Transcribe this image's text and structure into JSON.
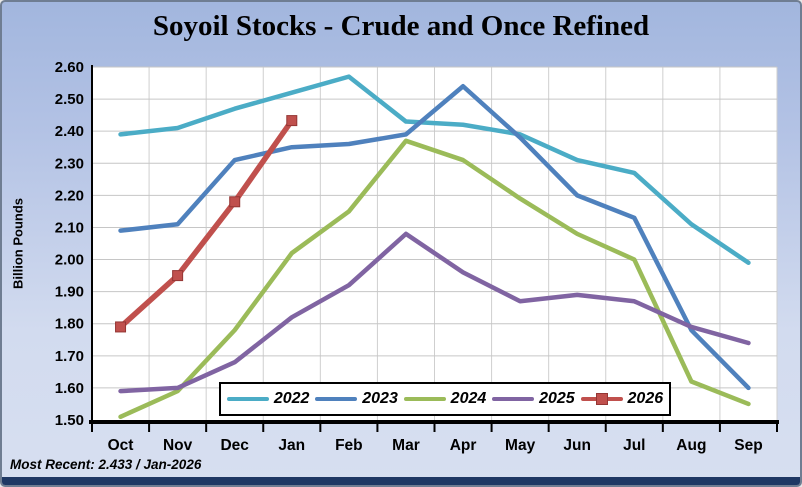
{
  "footer": {
    "text": "Most Recent: 2.433 / Jan-2026"
  },
  "colors": {
    "background_top": "#a2b6de",
    "background_bottom": "#d7dff0",
    "bottom_bar": "#1f3864",
    "plot_background": "#ffffff",
    "gridline": "#c6c6c6",
    "axis": "#000000",
    "legend_border": "#000000",
    "legend_background": "#ffffff"
  },
  "chart_data": {
    "type": "line",
    "title": "Soyoil Stocks - Crude and Once Refined",
    "xlabel": "",
    "ylabel": "Billion Pounds",
    "categories": [
      "Oct",
      "Nov",
      "Dec",
      "Jan",
      "Feb",
      "Mar",
      "Apr",
      "May",
      "Jun",
      "Jul",
      "Aug",
      "Sep"
    ],
    "ylim": [
      1.5,
      2.6
    ],
    "y_tick_step": 0.1,
    "y_ticks": [
      "2.60",
      "2.50",
      "2.40",
      "2.30",
      "2.20",
      "2.10",
      "2.00",
      "1.90",
      "1.80",
      "1.70",
      "1.60",
      "1.50"
    ],
    "grid": true,
    "legend_position": "bottom-inside",
    "series": [
      {
        "name": "2022",
        "color": "#4BACC6",
        "marker": "none",
        "values": [
          2.39,
          2.41,
          2.47,
          2.52,
          2.57,
          2.43,
          2.42,
          2.39,
          2.31,
          2.27,
          2.11,
          1.99
        ]
      },
      {
        "name": "2023",
        "color": "#4F81BD",
        "marker": "none",
        "values": [
          2.09,
          2.11,
          2.31,
          2.35,
          2.36,
          2.39,
          2.54,
          2.38,
          2.2,
          2.13,
          1.78,
          1.6
        ]
      },
      {
        "name": "2024",
        "color": "#9BBB59",
        "marker": "none",
        "values": [
          1.51,
          1.59,
          1.78,
          2.02,
          2.15,
          2.37,
          2.31,
          2.19,
          2.08,
          2.0,
          1.62,
          1.55
        ]
      },
      {
        "name": "2025",
        "color": "#8064A2",
        "marker": "none",
        "values": [
          1.59,
          1.6,
          1.68,
          1.82,
          1.92,
          2.08,
          1.96,
          1.87,
          1.89,
          1.87,
          1.79,
          1.74
        ]
      },
      {
        "name": "2026",
        "color": "#C0504D",
        "marker": "square",
        "marker_border": "#943634",
        "values": [
          1.79,
          1.95,
          2.18,
          2.433
        ]
      }
    ],
    "annotation": "Most Recent: 2.433 / Jan-2026"
  }
}
